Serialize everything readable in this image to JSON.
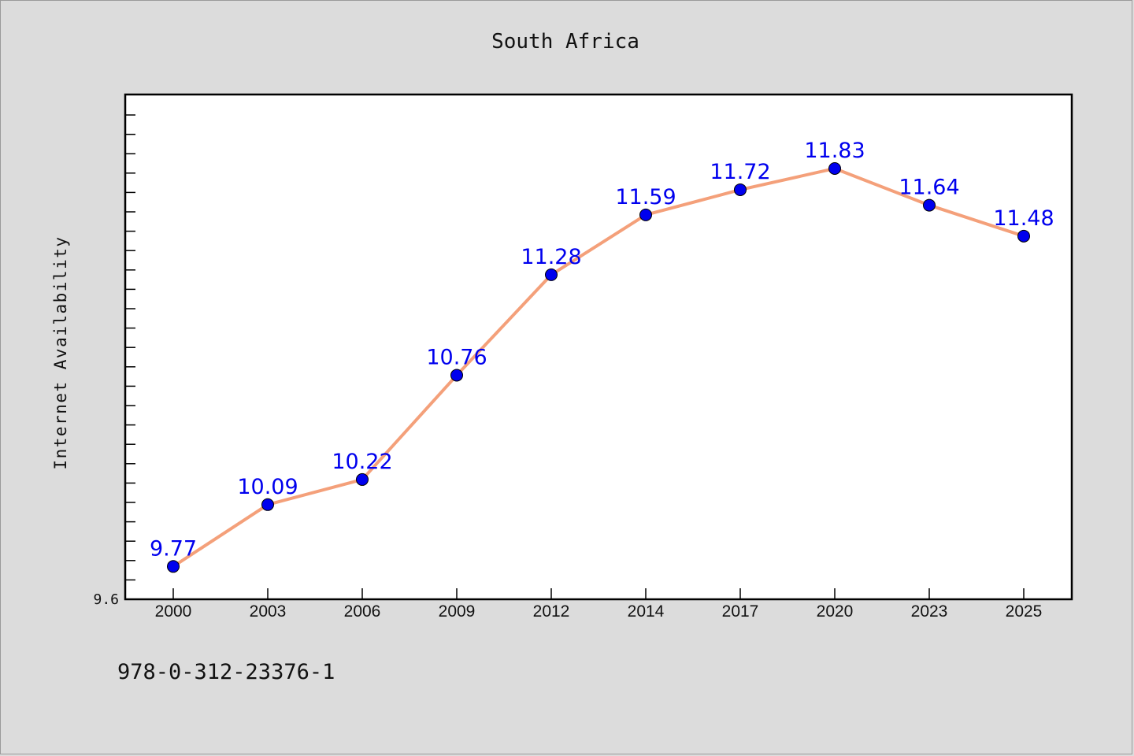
{
  "chart_data": {
    "type": "line",
    "title": "South Africa",
    "ylabel": "Internet Availability",
    "xlabel": "",
    "categories": [
      "2000",
      "2003",
      "2006",
      "2009",
      "2012",
      "2014",
      "2017",
      "2020",
      "2023",
      "2025"
    ],
    "series": [
      {
        "values": [
          9.77,
          10.09,
          10.22,
          10.76,
          11.28,
          11.59,
          11.72,
          11.83,
          11.64,
          11.48
        ],
        "labels": [
          "9.77",
          "10.09",
          "10.22",
          "10.76",
          "11.28",
          "11.59",
          "11.72",
          "11.83",
          "11.64",
          "11.48"
        ]
      }
    ],
    "ylim": [
      9.6,
      12.2
    ],
    "y_tick_labels": [
      "9.6"
    ],
    "grid": false,
    "line_color": "#f4a07a",
    "marker_color": "#0000ee",
    "label_color": "#0000ee"
  },
  "footer": {
    "isbn": "978-0-312-23376-1"
  }
}
